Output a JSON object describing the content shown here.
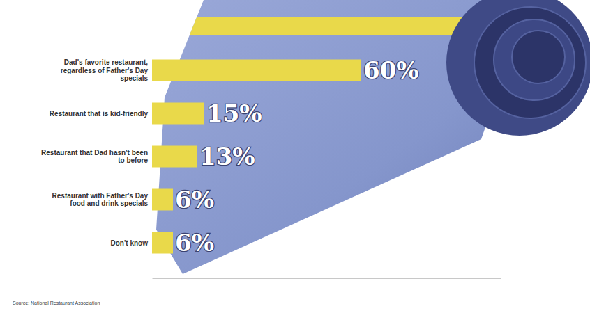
{
  "chart_data": {
    "type": "bar",
    "orientation": "horizontal",
    "categories": [
      "Dad's favorite restaurant, regardless of Father's Day specials",
      "Restaurant that is kid-friendly",
      "Restaurant that Dad hasn't been to before",
      "Restaurant with Father's Day food and drink specials",
      "Don't know"
    ],
    "values": [
      60,
      15,
      13,
      6,
      6
    ],
    "value_labels": [
      "60%",
      "15%",
      "13%",
      "6%",
      "6%"
    ],
    "data_labels": true,
    "tick_labels": false,
    "color": "#e9d94a",
    "xlim": [
      0,
      100
    ],
    "xticks": [],
    "source": "Source: National Restaurant Association"
  }
}
